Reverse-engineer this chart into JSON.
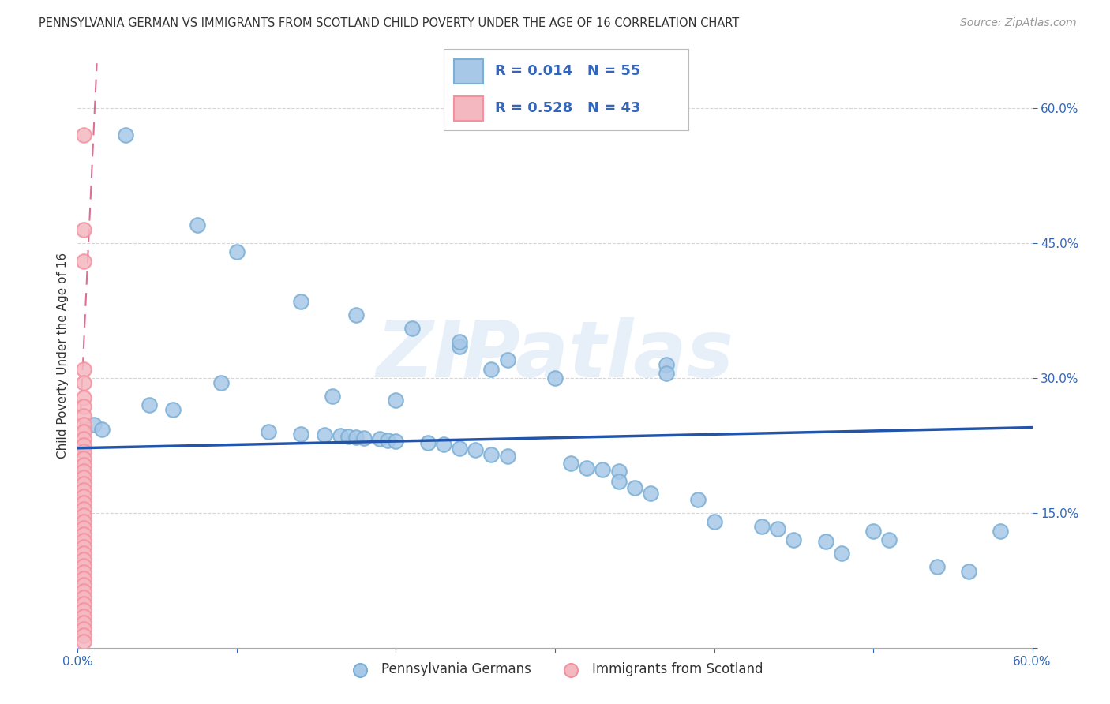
{
  "title": "PENNSYLVANIA GERMAN VS IMMIGRANTS FROM SCOTLAND CHILD POVERTY UNDER THE AGE OF 16 CORRELATION CHART",
  "source": "Source: ZipAtlas.com",
  "ylabel": "Child Poverty Under the Age of 16",
  "xlim": [
    0.0,
    0.6
  ],
  "ylim": [
    0.0,
    0.65
  ],
  "xtick_positions": [
    0.0,
    0.1,
    0.2,
    0.3,
    0.4,
    0.5,
    0.6
  ],
  "xticklabels": [
    "0.0%",
    "",
    "",
    "",
    "",
    "",
    "60.0%"
  ],
  "ytick_positions": [
    0.0,
    0.15,
    0.3,
    0.45,
    0.6
  ],
  "yticklabels": [
    "",
    "15.0%",
    "30.0%",
    "45.0%",
    "60.0%"
  ],
  "legend_labels": [
    "Pennsylvania Germans",
    "Immigrants from Scotland"
  ],
  "blue_color": "#7BAFD4",
  "pink_color": "#F4919E",
  "blue_fill": "#A8C8E8",
  "pink_fill": "#F4B8C0",
  "blue_line_color": "#2255AA",
  "pink_line_color": "#CC3366",
  "R_blue": 0.014,
  "N_blue": 55,
  "R_pink": 0.528,
  "N_pink": 43,
  "watermark": "ZIPatlas",
  "blue_points": [
    [
      0.03,
      0.57
    ],
    [
      0.075,
      0.47
    ],
    [
      0.1,
      0.44
    ],
    [
      0.14,
      0.385
    ],
    [
      0.175,
      0.37
    ],
    [
      0.21,
      0.355
    ],
    [
      0.24,
      0.335
    ],
    [
      0.27,
      0.32
    ],
    [
      0.09,
      0.295
    ],
    [
      0.16,
      0.28
    ],
    [
      0.2,
      0.275
    ],
    [
      0.24,
      0.34
    ],
    [
      0.26,
      0.31
    ],
    [
      0.3,
      0.3
    ],
    [
      0.37,
      0.315
    ],
    [
      0.37,
      0.305
    ],
    [
      0.045,
      0.27
    ],
    [
      0.06,
      0.265
    ],
    [
      0.01,
      0.248
    ],
    [
      0.015,
      0.243
    ],
    [
      0.12,
      0.24
    ],
    [
      0.14,
      0.238
    ],
    [
      0.155,
      0.237
    ],
    [
      0.165,
      0.236
    ],
    [
      0.17,
      0.235
    ],
    [
      0.175,
      0.234
    ],
    [
      0.18,
      0.233
    ],
    [
      0.19,
      0.232
    ],
    [
      0.195,
      0.231
    ],
    [
      0.2,
      0.23
    ],
    [
      0.22,
      0.228
    ],
    [
      0.23,
      0.226
    ],
    [
      0.24,
      0.222
    ],
    [
      0.25,
      0.22
    ],
    [
      0.26,
      0.215
    ],
    [
      0.27,
      0.213
    ],
    [
      0.31,
      0.205
    ],
    [
      0.32,
      0.2
    ],
    [
      0.33,
      0.198
    ],
    [
      0.34,
      0.196
    ],
    [
      0.34,
      0.185
    ],
    [
      0.35,
      0.178
    ],
    [
      0.36,
      0.172
    ],
    [
      0.39,
      0.165
    ],
    [
      0.4,
      0.14
    ],
    [
      0.43,
      0.135
    ],
    [
      0.44,
      0.132
    ],
    [
      0.45,
      0.12
    ],
    [
      0.47,
      0.118
    ],
    [
      0.48,
      0.105
    ],
    [
      0.5,
      0.13
    ],
    [
      0.51,
      0.12
    ],
    [
      0.54,
      0.09
    ],
    [
      0.56,
      0.085
    ],
    [
      0.58,
      0.13
    ]
  ],
  "pink_points": [
    [
      0.004,
      0.57
    ],
    [
      0.004,
      0.465
    ],
    [
      0.004,
      0.43
    ],
    [
      0.004,
      0.31
    ],
    [
      0.004,
      0.295
    ],
    [
      0.004,
      0.278
    ],
    [
      0.004,
      0.268
    ],
    [
      0.004,
      0.258
    ],
    [
      0.004,
      0.248
    ],
    [
      0.004,
      0.24
    ],
    [
      0.004,
      0.232
    ],
    [
      0.004,
      0.225
    ],
    [
      0.004,
      0.218
    ],
    [
      0.004,
      0.21
    ],
    [
      0.004,
      0.203
    ],
    [
      0.004,
      0.196
    ],
    [
      0.004,
      0.189
    ],
    [
      0.004,
      0.182
    ],
    [
      0.004,
      0.175
    ],
    [
      0.004,
      0.168
    ],
    [
      0.004,
      0.161
    ],
    [
      0.004,
      0.154
    ],
    [
      0.004,
      0.147
    ],
    [
      0.004,
      0.14
    ],
    [
      0.004,
      0.133
    ],
    [
      0.004,
      0.126
    ],
    [
      0.004,
      0.119
    ],
    [
      0.004,
      0.112
    ],
    [
      0.004,
      0.105
    ],
    [
      0.004,
      0.098
    ],
    [
      0.004,
      0.091
    ],
    [
      0.004,
      0.084
    ],
    [
      0.004,
      0.077
    ],
    [
      0.004,
      0.07
    ],
    [
      0.004,
      0.063
    ],
    [
      0.004,
      0.056
    ],
    [
      0.004,
      0.049
    ],
    [
      0.004,
      0.042
    ],
    [
      0.004,
      0.035
    ],
    [
      0.004,
      0.028
    ],
    [
      0.004,
      0.021
    ],
    [
      0.004,
      0.014
    ],
    [
      0.004,
      0.007
    ]
  ],
  "title_fontsize": 10.5,
  "source_fontsize": 10,
  "tick_fontsize": 11,
  "ylabel_fontsize": 11,
  "legend_fontsize": 13,
  "title_color": "#333333",
  "axis_color": "#3366BB",
  "tick_color": "#3366BB",
  "grid_color": "#CCCCCC",
  "background_color": "#FFFFFF"
}
